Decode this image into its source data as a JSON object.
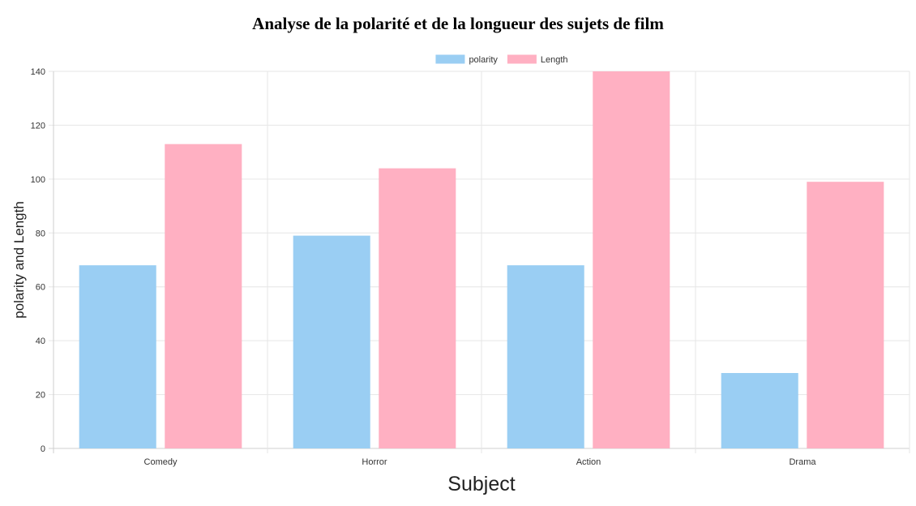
{
  "chart_data": {
    "type": "bar",
    "title": "Analyse de la polarité et de la longueur des sujets de film",
    "xlabel": "Subject",
    "ylabel": "polarity and Length",
    "categories": [
      "Comedy",
      "Horror",
      "Action",
      "Drama"
    ],
    "series": [
      {
        "name": "polarity",
        "values": [
          68,
          79,
          68,
          28
        ],
        "color": "#9ACEF3"
      },
      {
        "name": "Length",
        "values": [
          113,
          104,
          140,
          99
        ],
        "color": "#FFB0C2"
      }
    ],
    "ylim": [
      0,
      140
    ],
    "yticks": [
      0,
      20,
      40,
      60,
      80,
      100,
      120,
      140
    ],
    "grid": true,
    "legend_position": "top-center"
  }
}
